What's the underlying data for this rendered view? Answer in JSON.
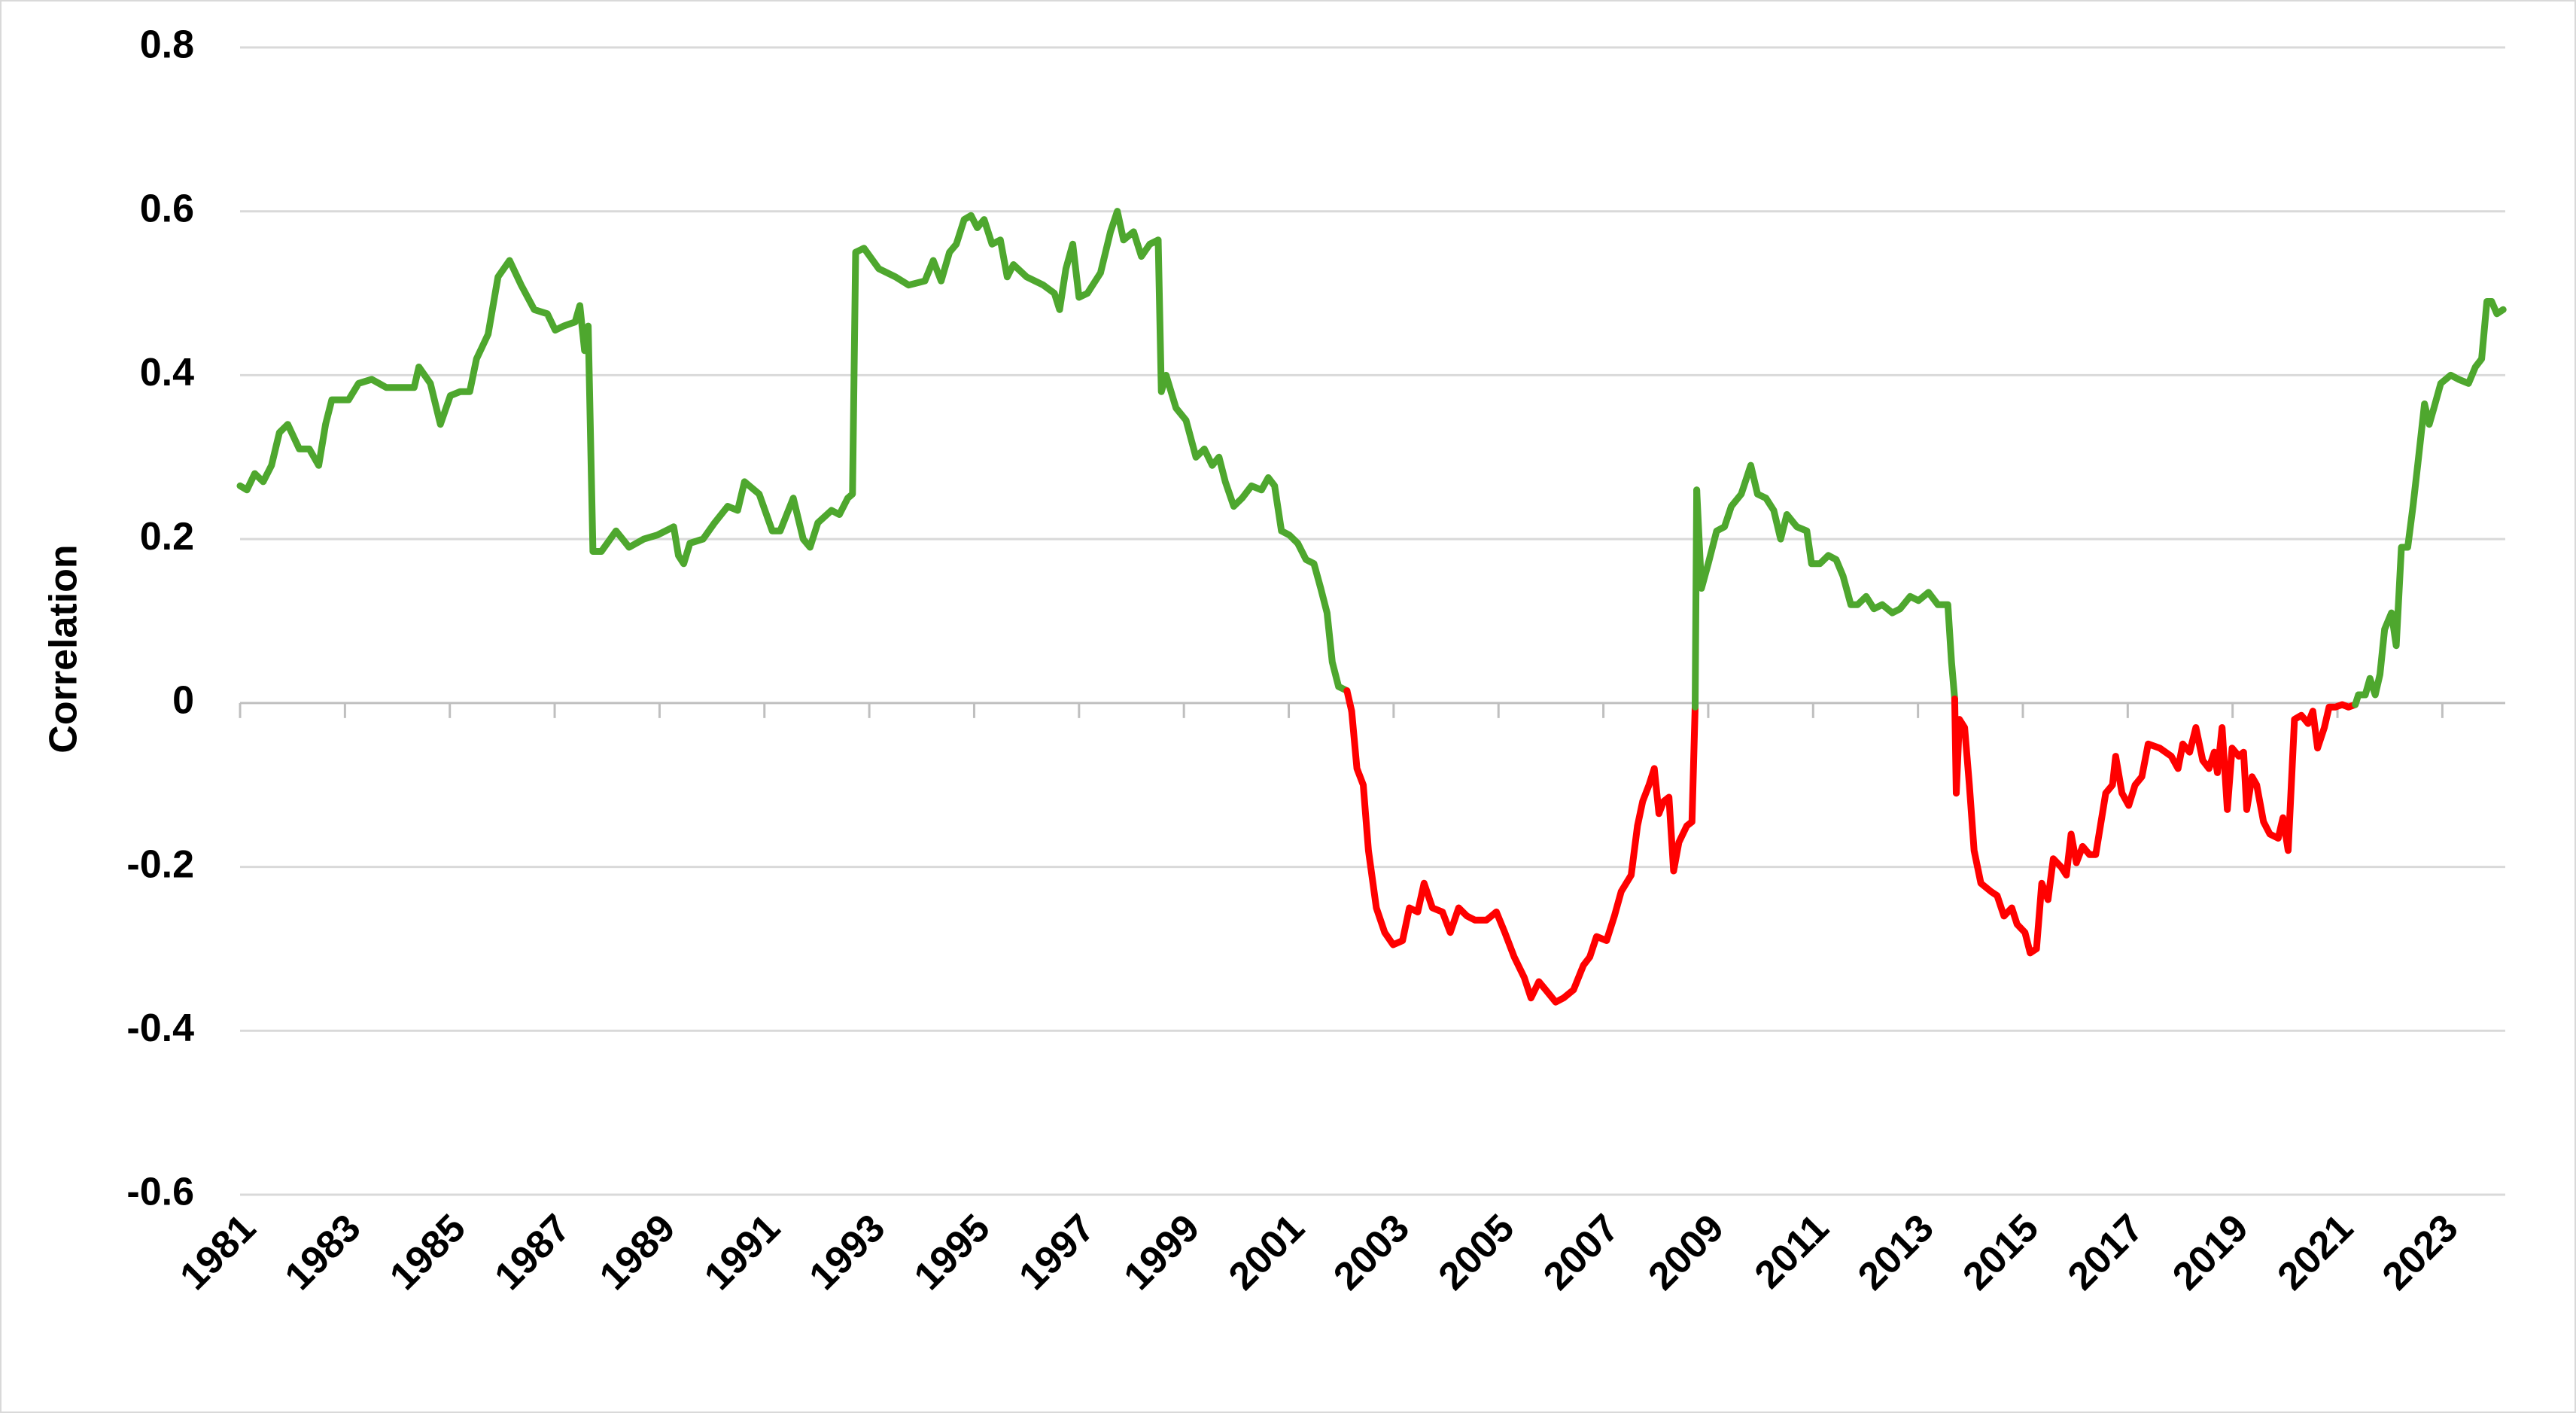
{
  "chart_data": {
    "type": "line",
    "y_label": "Correlation",
    "xlim": [
      1981,
      2024.2
    ],
    "ylim": [
      -0.6,
      0.8
    ],
    "xticks": [
      1981,
      1983,
      1985,
      1987,
      1989,
      1991,
      1993,
      1995,
      1997,
      1999,
      2001,
      2003,
      2005,
      2007,
      2009,
      2011,
      2013,
      2015,
      2017,
      2019,
      2021,
      2023
    ],
    "yticks": [
      0.8,
      0.6,
      0.4,
      0.2,
      0,
      -0.2,
      -0.4,
      -0.6
    ],
    "grid": true,
    "negative_color": "#ff0000",
    "series": [
      {
        "color": "#4ea72e",
        "x": [
          1981.0,
          1981.13,
          1981.28,
          1981.44,
          1981.6,
          1981.75,
          1981.91,
          1982.13,
          1982.32,
          1982.5,
          1982.63,
          1982.75,
          1983.07,
          1983.26,
          1983.51,
          1983.79,
          1984.1,
          1984.32,
          1984.41,
          1984.63,
          1984.82,
          1985.01,
          1985.2,
          1985.38,
          1985.51,
          1985.73,
          1985.92,
          1986.14,
          1986.36,
          1986.61,
          1986.86,
          1987.01,
          1987.17,
          1987.39,
          1987.48,
          1987.57,
          1987.64,
          1987.73,
          1987.89,
          1988.17,
          1988.42,
          1988.7,
          1988.96,
          1989.27,
          1989.36,
          1989.46,
          1989.58,
          1989.83,
          1990.05,
          1990.3,
          1990.49,
          1990.62,
          1990.9,
          1991.15,
          1991.3,
          1991.55,
          1991.74,
          1991.87,
          1992.02,
          1992.28,
          1992.43,
          1992.59,
          1992.68,
          1992.74,
          1992.9,
          1993.18,
          1993.5,
          1993.75,
          1994.06,
          1994.22,
          1994.37,
          1994.53,
          1994.66,
          1994.81,
          1994.94,
          1995.06,
          1995.19,
          1995.34,
          1995.5,
          1995.63,
          1995.75,
          1996.0,
          1996.32,
          1996.53,
          1996.63,
          1996.75,
          1996.88,
          1997.0,
          1997.16,
          1997.41,
          1997.6,
          1997.73,
          1997.85,
          1998.04,
          1998.19,
          1998.35,
          1998.51,
          1998.57,
          1998.66,
          1998.85,
          1999.04,
          1999.23,
          1999.39,
          1999.54,
          1999.67,
          1999.79,
          1999.95,
          2000.11,
          2000.29,
          2000.48,
          2000.61,
          2000.73,
          2000.86,
          2001.01,
          2001.17,
          2001.33,
          2001.48,
          2001.61,
          2001.73,
          2001.83,
          2001.95,
          2002.11,
          2002.2,
          2002.3,
          2002.42,
          2002.52,
          2002.67,
          2002.83,
          2002.99,
          2003.17,
          2003.3,
          2003.46,
          2003.58,
          2003.74,
          2003.93,
          2004.08,
          2004.24,
          2004.4,
          2004.55,
          2004.77,
          2004.96,
          2005.12,
          2005.3,
          2005.49,
          2005.62,
          2005.77,
          2005.9,
          2006.09,
          2006.24,
          2006.43,
          2006.62,
          2006.74,
          2006.87,
          2007.06,
          2007.21,
          2007.34,
          2007.53,
          2007.65,
          2007.75,
          2007.87,
          2007.97,
          2008.06,
          2008.15,
          2008.25,
          2008.34,
          2008.44,
          2008.59,
          2008.69,
          2008.75,
          2008.78,
          2008.87,
          2009.0,
          2009.16,
          2009.31,
          2009.44,
          2009.63,
          2009.81,
          2009.94,
          2010.1,
          2010.25,
          2010.38,
          2010.5,
          2010.69,
          2010.88,
          2010.97,
          2011.13,
          2011.29,
          2011.44,
          2011.57,
          2011.72,
          2011.85,
          2012.01,
          2012.16,
          2012.32,
          2012.51,
          2012.66,
          2012.85,
          2013.01,
          2013.2,
          2013.38,
          2013.57,
          2013.64,
          2013.7,
          2013.73,
          2013.79,
          2013.89,
          2013.98,
          2014.07,
          2014.2,
          2014.39,
          2014.51,
          2014.64,
          2014.79,
          2014.89,
          2015.04,
          2015.14,
          2015.26,
          2015.36,
          2015.48,
          2015.58,
          2015.73,
          2015.83,
          2015.92,
          2016.02,
          2016.14,
          2016.27,
          2016.39,
          2016.58,
          2016.71,
          2016.77,
          2016.89,
          2017.02,
          2017.14,
          2017.27,
          2017.39,
          2017.61,
          2017.83,
          2017.96,
          2018.05,
          2018.18,
          2018.3,
          2018.43,
          2018.55,
          2018.65,
          2018.71,
          2018.8,
          2018.9,
          2018.99,
          2019.12,
          2019.21,
          2019.27,
          2019.37,
          2019.46,
          2019.59,
          2019.71,
          2019.87,
          2019.96,
          2020.06,
          2020.18,
          2020.31,
          2020.44,
          2020.53,
          2020.62,
          2020.75,
          2020.84,
          2020.96,
          2021.09,
          2021.21,
          2021.34,
          2021.4,
          2021.53,
          2021.62,
          2021.72,
          2021.81,
          2021.9,
          2022.03,
          2022.12,
          2022.22,
          2022.34,
          2022.44,
          2022.53,
          2022.66,
          2022.75,
          2022.84,
          2022.97,
          2023.16,
          2023.31,
          2023.5,
          2023.63,
          2023.75,
          2023.85,
          2023.94,
          2024.04,
          2024.16
        ],
        "values": [
          0.265,
          0.26,
          0.28,
          0.27,
          0.29,
          0.33,
          0.34,
          0.31,
          0.31,
          0.29,
          0.34,
          0.37,
          0.37,
          0.39,
          0.395,
          0.385,
          0.385,
          0.385,
          0.41,
          0.39,
          0.34,
          0.375,
          0.38,
          0.38,
          0.42,
          0.45,
          0.52,
          0.54,
          0.51,
          0.48,
          0.475,
          0.455,
          0.46,
          0.465,
          0.485,
          0.43,
          0.46,
          0.185,
          0.185,
          0.21,
          0.19,
          0.2,
          0.205,
          0.215,
          0.18,
          0.17,
          0.195,
          0.2,
          0.22,
          0.24,
          0.235,
          0.27,
          0.255,
          0.21,
          0.21,
          0.25,
          0.2,
          0.19,
          0.22,
          0.235,
          0.23,
          0.25,
          0.255,
          0.55,
          0.555,
          0.53,
          0.52,
          0.51,
          0.515,
          0.54,
          0.515,
          0.55,
          0.56,
          0.59,
          0.595,
          0.58,
          0.59,
          0.56,
          0.565,
          0.52,
          0.535,
          0.52,
          0.51,
          0.5,
          0.48,
          0.53,
          0.56,
          0.495,
          0.5,
          0.525,
          0.575,
          0.6,
          0.565,
          0.575,
          0.545,
          0.56,
          0.565,
          0.38,
          0.4,
          0.36,
          0.345,
          0.3,
          0.31,
          0.29,
          0.3,
          0.27,
          0.24,
          0.25,
          0.265,
          0.26,
          0.275,
          0.265,
          0.21,
          0.205,
          0.195,
          0.175,
          0.17,
          0.14,
          0.11,
          0.05,
          0.02,
          0.015,
          -0.01,
          -0.08,
          -0.1,
          -0.18,
          -0.25,
          -0.28,
          -0.295,
          -0.29,
          -0.25,
          -0.255,
          -0.22,
          -0.25,
          -0.255,
          -0.28,
          -0.25,
          -0.26,
          -0.265,
          -0.265,
          -0.255,
          -0.28,
          -0.31,
          -0.335,
          -0.36,
          -0.34,
          -0.35,
          -0.365,
          -0.36,
          -0.35,
          -0.32,
          -0.31,
          -0.285,
          -0.29,
          -0.26,
          -0.23,
          -0.21,
          -0.15,
          -0.12,
          -0.1,
          -0.08,
          -0.135,
          -0.12,
          -0.115,
          -0.205,
          -0.17,
          -0.15,
          -0.145,
          -0.005,
          0.26,
          0.14,
          0.17,
          0.21,
          0.215,
          0.24,
          0.255,
          0.29,
          0.255,
          0.25,
          0.235,
          0.2,
          0.23,
          0.215,
          0.21,
          0.17,
          0.17,
          0.18,
          0.175,
          0.155,
          0.12,
          0.12,
          0.13,
          0.115,
          0.12,
          0.11,
          0.115,
          0.13,
          0.125,
          0.135,
          0.12,
          0.12,
          0.05,
          0.005,
          -0.11,
          -0.02,
          -0.03,
          -0.1,
          -0.18,
          -0.22,
          -0.23,
          -0.235,
          -0.26,
          -0.25,
          -0.27,
          -0.28,
          -0.305,
          -0.3,
          -0.22,
          -0.24,
          -0.19,
          -0.2,
          -0.21,
          -0.16,
          -0.195,
          -0.175,
          -0.185,
          -0.185,
          -0.11,
          -0.1,
          -0.065,
          -0.11,
          -0.125,
          -0.1,
          -0.09,
          -0.05,
          -0.055,
          -0.065,
          -0.08,
          -0.05,
          -0.06,
          -0.03,
          -0.07,
          -0.08,
          -0.06,
          -0.085,
          -0.03,
          -0.13,
          -0.055,
          -0.065,
          -0.06,
          -0.13,
          -0.09,
          -0.1,
          -0.145,
          -0.16,
          -0.165,
          -0.14,
          -0.18,
          -0.02,
          -0.015,
          -0.025,
          -0.01,
          -0.055,
          -0.03,
          -0.005,
          -0.005,
          -0.002,
          -0.005,
          -0.002,
          0.01,
          0.01,
          0.03,
          0.01,
          0.035,
          0.09,
          0.11,
          0.07,
          0.19,
          0.19,
          0.24,
          0.29,
          0.365,
          0.34,
          0.36,
          0.39,
          0.4,
          0.395,
          0.39,
          0.41,
          0.42,
          0.49,
          0.49,
          0.475,
          0.48
        ]
      }
    ]
  }
}
